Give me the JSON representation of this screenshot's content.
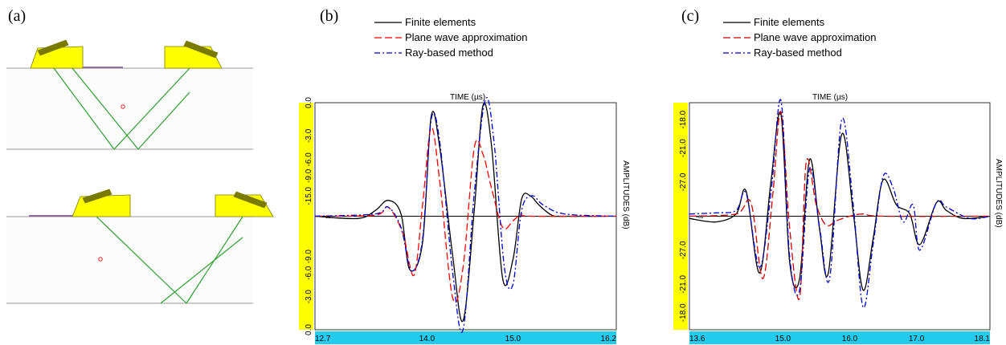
{
  "panels": {
    "a": {
      "label": "(a)",
      "colors": {
        "probe": "#ffff00",
        "probe_stroke": "#7a7a00",
        "ray": "#2e9e2e",
        "surface": "#999999",
        "wedge_contact": "#8b6b9b",
        "defect": "#e02020"
      }
    },
    "b": {
      "label": "(b)"
    },
    "c": {
      "label": "(c)"
    }
  },
  "chart_data": [
    {
      "type": "line",
      "panel": "b",
      "title": "TIME (µs)",
      "ylabel": "AMPLITUDES (dB)",
      "xlim": [
        12.7,
        16.2
      ],
      "x_ticks": [
        "12.7",
        "14.0",
        "15.0",
        "16.2"
      ],
      "x_tick_values": [
        12.7,
        14.0,
        15.0,
        16.2
      ],
      "ylim": [
        -1,
        1
      ],
      "y_ticks": [
        "0.0",
        "-3.0",
        "-6.0",
        "-9.0",
        "-15.0",
        "-9.0",
        "-6.0",
        "-3.0",
        "0.0"
      ],
      "y_tick_values": [
        1,
        0.708,
        0.5,
        0.355,
        0.178,
        -0.355,
        -0.5,
        -0.708,
        -1
      ],
      "baseline_label": "-∞",
      "legend": [
        "Finite elements",
        "Plane wave approximation",
        "Ray-based method"
      ],
      "series": [
        {
          "name": "Finite elements",
          "color": "#000000",
          "style": "solid",
          "x": [
            12.7,
            13.2,
            13.4,
            13.55,
            13.7,
            13.8,
            13.95,
            14.05,
            14.15,
            14.3,
            14.42,
            14.55,
            14.65,
            14.75,
            14.88,
            15.0,
            15.1,
            15.2,
            15.3,
            15.45,
            15.6,
            16.2
          ],
          "y": [
            0,
            -0.02,
            0.05,
            0.14,
            0.02,
            -0.47,
            -0.23,
            0.88,
            0.6,
            -0.35,
            -0.92,
            0.05,
            0.97,
            0.63,
            -0.55,
            -0.38,
            0.15,
            0.18,
            0.1,
            0.01,
            0,
            0
          ]
        },
        {
          "name": "Plane wave approximation",
          "color": "#ff0000",
          "style": "dashed",
          "x": [
            12.7,
            13.4,
            13.55,
            13.72,
            13.85,
            13.95,
            14.05,
            14.15,
            14.3,
            14.42,
            14.55,
            14.65,
            14.75,
            14.88,
            15.0,
            15.1,
            15.2,
            16.2
          ],
          "y": [
            0,
            0.01,
            0.08,
            -0.15,
            -0.52,
            0.1,
            0.78,
            0.3,
            -0.72,
            -0.45,
            0.6,
            0.55,
            0.25,
            -0.1,
            -0.04,
            0.02,
            0,
            0
          ]
        },
        {
          "name": "Ray-based method",
          "color": "#0000cc",
          "style": "dashdot",
          "x": [
            12.7,
            13.4,
            13.55,
            13.7,
            13.82,
            13.95,
            14.05,
            14.15,
            14.3,
            14.42,
            14.55,
            14.68,
            14.78,
            14.9,
            15.0,
            15.1,
            15.22,
            15.35,
            15.6,
            16.2
          ],
          "y": [
            0,
            0.02,
            0.08,
            -0.1,
            -0.48,
            -0.2,
            0.85,
            0.65,
            -0.5,
            -1.0,
            0.2,
            1.03,
            0.65,
            -0.45,
            -0.6,
            0.05,
            0.18,
            0.1,
            0.02,
            0
          ]
        }
      ]
    },
    {
      "type": "line",
      "panel": "c",
      "title": "TIME (µs)",
      "ylabel": "AMPLITUDES (dB)",
      "xlim": [
        13.6,
        18.1
      ],
      "x_ticks": [
        "13.6",
        "15.0",
        "16.0",
        "17.0",
        "18.1"
      ],
      "x_tick_values": [
        13.6,
        15.0,
        16.0,
        17.0,
        18.1
      ],
      "ylim": [
        -1,
        1
      ],
      "y_ticks": [
        "-18.0",
        "-21.0",
        "-27.0",
        "-27.0",
        "-21.0",
        "-18.0"
      ],
      "y_tick_values": [
        0.85,
        0.6,
        0.3,
        -0.3,
        -0.6,
        -0.85
      ],
      "baseline_label": "-∞",
      "legend": [
        "Finite elements",
        "Plane wave approximation",
        "Ray-based method"
      ],
      "series": [
        {
          "name": "Finite elements",
          "color": "#000000",
          "style": "solid",
          "x": [
            13.6,
            14.0,
            14.3,
            14.45,
            14.65,
            14.82,
            14.97,
            15.1,
            15.25,
            15.4,
            15.55,
            15.68,
            15.88,
            16.05,
            16.2,
            16.35,
            16.5,
            16.7,
            16.9,
            17.05,
            17.3,
            17.45,
            17.7,
            18.1
          ],
          "y": [
            -0.02,
            -0.05,
            0.02,
            0.22,
            -0.5,
            0.3,
            0.9,
            -0.4,
            -0.55,
            0.5,
            -0.12,
            -0.5,
            0.72,
            0.05,
            -0.65,
            -0.2,
            0.32,
            0.1,
            0.02,
            -0.25,
            0.12,
            0.05,
            -0.02,
            0
          ]
        },
        {
          "name": "Plane wave approximation",
          "color": "#cc0000",
          "style": "dashed",
          "x": [
            13.6,
            14.3,
            14.52,
            14.7,
            14.85,
            14.97,
            15.1,
            15.25,
            15.35,
            15.5,
            15.65,
            15.8,
            16.0,
            16.2,
            16.5,
            18.1
          ],
          "y": [
            0,
            0.02,
            0.12,
            -0.55,
            0.2,
            0.92,
            -0.1,
            -0.72,
            0.48,
            0.1,
            -0.08,
            -0.04,
            0,
            0.02,
            0,
            0
          ]
        },
        {
          "name": "Ray-based method",
          "color": "#0000cc",
          "style": "dashdot",
          "x": [
            13.6,
            14.0,
            14.3,
            14.45,
            14.65,
            14.82,
            14.97,
            15.1,
            15.25,
            15.4,
            15.55,
            15.7,
            15.88,
            16.05,
            16.2,
            16.35,
            16.5,
            16.65,
            16.8,
            16.95,
            17.05,
            17.3,
            17.45,
            17.8,
            18.1
          ],
          "y": [
            0.02,
            0.03,
            0.05,
            0.2,
            -0.45,
            0.2,
            1.02,
            -0.35,
            -0.65,
            0.42,
            -0.1,
            -0.55,
            0.85,
            0.12,
            -0.8,
            -0.25,
            0.35,
            0.25,
            -0.05,
            0.1,
            -0.3,
            0.12,
            0.08,
            -0.02,
            0
          ]
        }
      ]
    }
  ]
}
